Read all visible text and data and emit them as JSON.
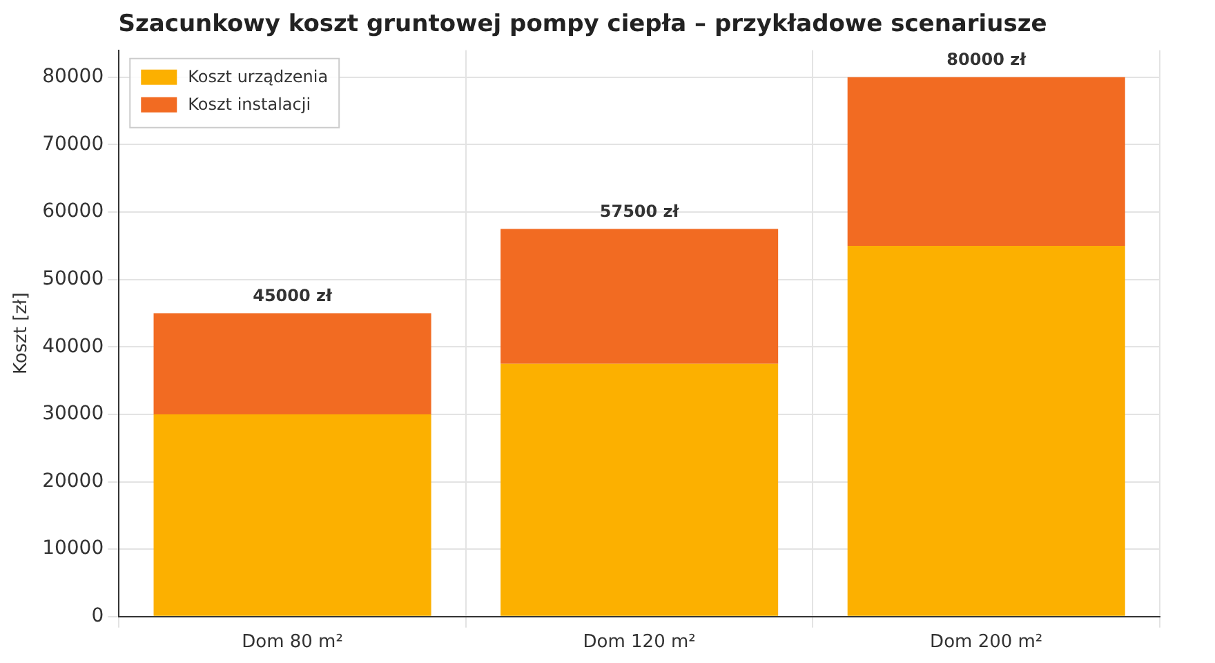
{
  "chart_data": {
    "type": "bar",
    "title": "Szacunkowy koszt gruntowej pompy ciepła – przykładowe scenariusze",
    "ylabel": "Koszt [zł]",
    "categories": [
      "Dom 80 m²",
      "Dom 120 m²",
      "Dom 200 m²"
    ],
    "series": [
      {
        "name": "Koszt urządzenia",
        "color": "#fcb000",
        "values": [
          30000,
          37500,
          55000
        ]
      },
      {
        "name": "Koszt instalacji",
        "color": "#f26b22",
        "values": [
          15000,
          20000,
          25000
        ]
      }
    ],
    "stacked": true,
    "totals": [
      "45000 zł",
      "57500 zł",
      "80000 zł"
    ],
    "ylim": [
      0,
      84000
    ],
    "yticks": [
      0,
      10000,
      20000,
      30000,
      40000,
      50000,
      60000,
      70000,
      80000
    ],
    "grid": true,
    "legend": "top left"
  }
}
